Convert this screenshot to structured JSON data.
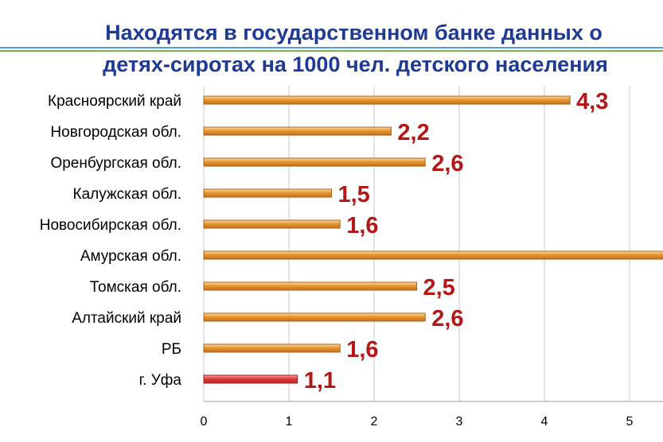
{
  "title_lines": [
    "Находятся в государственном банке данных о",
    "детях-сиротах на 1000 чел. детского населения"
  ],
  "chart_data": {
    "type": "bar",
    "orientation": "horizontal",
    "title": "Находятся в государственном банке данных о детях-сиротах на 1000 чел. детского населения",
    "categories": [
      "Красноярский край",
      "Новгородская обл.",
      "Оренбургская обл.",
      "Калужская обл.",
      "Новосибирская обл.",
      "Амурская обл.",
      "Томская обл.",
      "Алтайский край",
      "РБ",
      "г. Уфа"
    ],
    "values": [
      4.3,
      2.2,
      2.6,
      1.5,
      1.6,
      5.4,
      2.5,
      2.6,
      1.6,
      1.1
    ],
    "value_labels": [
      "4,3",
      "2,2",
      "2,6",
      "1,5",
      "1,6",
      "",
      "2,5",
      "2,6",
      "1,6",
      "1,1"
    ],
    "highlight_category": "г. Уфа",
    "xlim": [
      0,
      5.5
    ],
    "x_ticks": [
      0,
      1,
      2,
      3,
      4,
      5
    ],
    "grid": "vertical",
    "legend": "none",
    "colors": {
      "bar": "#e8962e",
      "bar_light": "#fbdcae",
      "bar_edge": "#a86418",
      "highlight_bar": "#e03a3a",
      "highlight_light": "#f6a8a8",
      "highlight_edge": "#a81e1e",
      "value_label": "#b31717",
      "grid": "#c8c8c8",
      "title": "#1f3a93"
    }
  }
}
